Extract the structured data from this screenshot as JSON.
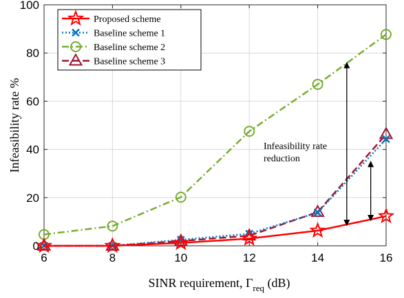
{
  "chart_data": {
    "type": "line",
    "xlabel": "SINR requirement, Γ",
    "xlabel_sub": "req",
    "xlabel_suffix": " (dB)",
    "ylabel": "Infeasibility rate %",
    "xlim": [
      6,
      16
    ],
    "ylim": [
      0,
      100
    ],
    "xticks": [
      6,
      8,
      10,
      12,
      14,
      16
    ],
    "yticks": [
      0,
      20,
      40,
      60,
      80,
      100
    ],
    "grid": true,
    "legend_position": "top-left",
    "x": [
      6,
      8,
      10,
      12,
      14,
      16
    ],
    "series": [
      {
        "name": "Proposed scheme",
        "values": [
          0,
          0,
          1.2,
          3.0,
          6.3,
          12.3
        ],
        "color": "#ff0000",
        "line": "solid",
        "marker": "star"
      },
      {
        "name": "Baseline scheme 1",
        "values": [
          0,
          0,
          2.5,
          5.0,
          13.8,
          44.3
        ],
        "color": "#0072bd",
        "line": "dotted",
        "marker": "x"
      },
      {
        "name": "Baseline scheme 2",
        "values": [
          4.7,
          8.2,
          20.2,
          47.5,
          67.0,
          87.7
        ],
        "color": "#77ac30",
        "line": "dashdot",
        "marker": "circle"
      },
      {
        "name": "Baseline scheme 3",
        "values": [
          0,
          0,
          2.0,
          4.2,
          14.0,
          46.3
        ],
        "color": "#a2142f",
        "line": "dashed",
        "marker": "triangle"
      }
    ],
    "annotation": {
      "lines": [
        "Infeasibility rate",
        "reduction"
      ],
      "arrows": [
        {
          "x": 14.85,
          "y_from": 8.5,
          "y_to": 76
        },
        {
          "x": 15.55,
          "y_from": 10.5,
          "y_to": 35
        }
      ]
    }
  }
}
